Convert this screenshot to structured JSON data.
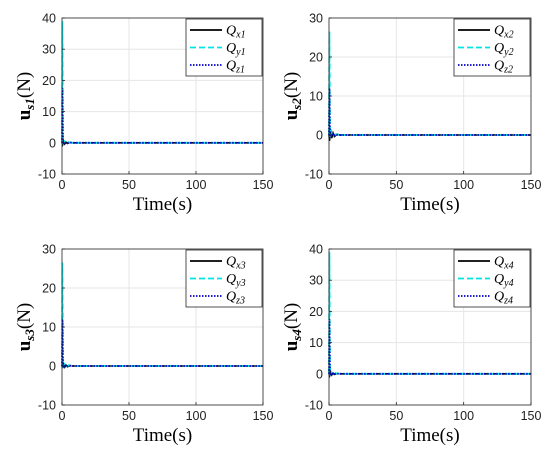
{
  "chart_data": [
    {
      "type": "line",
      "ylabel": {
        "base": "u",
        "sub": "s1",
        "unit": "(N)"
      },
      "xlabel": "Time(s)",
      "xlim": [
        0,
        150
      ],
      "ylim": [
        -10,
        40
      ],
      "xticks": [
        0,
        50,
        100,
        150
      ],
      "yticks": [
        -10,
        0,
        10,
        20,
        30,
        40
      ],
      "grid": true,
      "legend_position": "top-right",
      "series": [
        {
          "name": "Q_x1",
          "label": {
            "q": "Q",
            "sub": "x1"
          },
          "color": "#000000",
          "style": "solid",
          "x": [
            0,
            0.5,
            1,
            2,
            3,
            4,
            6,
            8,
            10,
            20,
            50,
            100,
            150
          ],
          "y": [
            0,
            -0.5,
            0.5,
            -0.4,
            0.2,
            -0.2,
            0.1,
            0,
            0,
            0,
            0,
            0,
            0
          ]
        },
        {
          "name": "Q_y1",
          "label": {
            "q": "Q",
            "sub": "y1"
          },
          "color": "#00e5e5",
          "style": "dashed",
          "x": [
            0,
            0.3,
            0.7,
            1,
            2,
            3,
            5,
            8,
            10,
            20,
            50,
            100,
            150
          ],
          "y": [
            0,
            39,
            2,
            -0.5,
            0.4,
            -0.3,
            0.2,
            0,
            0,
            0,
            0,
            0,
            0
          ]
        },
        {
          "name": "Q_z1",
          "label": {
            "q": "Q",
            "sub": "z1"
          },
          "color": "#0000cc",
          "style": "dotted",
          "x": [
            0,
            0.3,
            0.7,
            1,
            2,
            3,
            5,
            8,
            10,
            20,
            50,
            100,
            150
          ],
          "y": [
            0,
            17.5,
            1,
            -0.5,
            0.3,
            -0.2,
            0.1,
            0,
            0,
            0,
            0,
            0,
            0
          ]
        }
      ]
    },
    {
      "type": "line",
      "ylabel": {
        "base": "u",
        "sub": "s2",
        "unit": "(N)"
      },
      "xlabel": "Time(s)",
      "xlim": [
        0,
        150
      ],
      "ylim": [
        -10,
        30
      ],
      "xticks": [
        0,
        50,
        100,
        150
      ],
      "yticks": [
        -10,
        0,
        10,
        20,
        30
      ],
      "grid": true,
      "legend_position": "top-right",
      "series": [
        {
          "name": "Q_x2",
          "label": {
            "q": "Q",
            "sub": "x2"
          },
          "color": "#000000",
          "style": "solid",
          "x": [
            0,
            0.4,
            1,
            2,
            3,
            4,
            6,
            8,
            10,
            20,
            50,
            100,
            150
          ],
          "y": [
            0,
            -1.5,
            1.5,
            -0.8,
            0.5,
            -0.4,
            0.2,
            0,
            0,
            0,
            0,
            0,
            0
          ]
        },
        {
          "name": "Q_y2",
          "label": {
            "q": "Q",
            "sub": "y2"
          },
          "color": "#00e5e5",
          "style": "dashed",
          "x": [
            0,
            0.3,
            0.7,
            1,
            2,
            3,
            5,
            8,
            10,
            20,
            50,
            100,
            150
          ],
          "y": [
            0,
            26.5,
            2,
            -0.5,
            0.4,
            -0.3,
            0.2,
            0,
            0,
            0,
            0,
            0,
            0
          ]
        },
        {
          "name": "Q_z2",
          "label": {
            "q": "Q",
            "sub": "z2"
          },
          "color": "#0000cc",
          "style": "dotted",
          "x": [
            0,
            0.3,
            0.7,
            1,
            2,
            3,
            5,
            8,
            10,
            20,
            50,
            100,
            150
          ],
          "y": [
            0,
            12,
            1,
            -0.5,
            0.3,
            -0.2,
            0.1,
            0,
            0,
            0,
            0,
            0,
            0
          ]
        }
      ]
    },
    {
      "type": "line",
      "ylabel": {
        "base": "u",
        "sub": "s3",
        "unit": "(N)"
      },
      "xlabel": "Time(s)",
      "xlim": [
        0,
        150
      ],
      "ylim": [
        -10,
        30
      ],
      "xticks": [
        0,
        50,
        100,
        150
      ],
      "yticks": [
        -10,
        0,
        10,
        20,
        30
      ],
      "grid": true,
      "legend_position": "top-right",
      "series": [
        {
          "name": "Q_x3",
          "label": {
            "q": "Q",
            "sub": "x3"
          },
          "color": "#000000",
          "style": "solid",
          "x": [
            0,
            0.5,
            1,
            2,
            3,
            4,
            6,
            8,
            10,
            20,
            50,
            100,
            150
          ],
          "y": [
            0,
            -0.5,
            0.5,
            -0.3,
            0.2,
            -0.2,
            0.1,
            0,
            0,
            0,
            0,
            0,
            0
          ]
        },
        {
          "name": "Q_y3",
          "label": {
            "q": "Q",
            "sub": "y3"
          },
          "color": "#00e5e5",
          "style": "dashed",
          "x": [
            0,
            0.3,
            0.7,
            1,
            2,
            3,
            5,
            8,
            10,
            20,
            50,
            100,
            150
          ],
          "y": [
            0,
            26.5,
            2,
            -0.5,
            0.4,
            -0.3,
            0.2,
            0,
            0,
            0,
            0,
            0,
            0
          ]
        },
        {
          "name": "Q_z3",
          "label": {
            "q": "Q",
            "sub": "z3"
          },
          "color": "#0000cc",
          "style": "dotted",
          "x": [
            0,
            0.3,
            0.7,
            1,
            2,
            3,
            5,
            8,
            10,
            20,
            50,
            100,
            150
          ],
          "y": [
            0,
            12,
            1,
            -0.5,
            0.3,
            -0.2,
            0.1,
            0,
            0,
            0,
            0,
            0,
            0
          ]
        }
      ]
    },
    {
      "type": "line",
      "ylabel": {
        "base": "u",
        "sub": "s4",
        "unit": "(N)"
      },
      "xlabel": "Time(s)",
      "xlim": [
        0,
        150
      ],
      "ylim": [
        -10,
        40
      ],
      "xticks": [
        0,
        50,
        100,
        150
      ],
      "yticks": [
        -10,
        0,
        10,
        20,
        30,
        40
      ],
      "grid": true,
      "legend_position": "top-right",
      "series": [
        {
          "name": "Q_x4",
          "label": {
            "q": "Q",
            "sub": "x4"
          },
          "color": "#000000",
          "style": "solid",
          "x": [
            0,
            0.5,
            1,
            2,
            3,
            4,
            6,
            8,
            10,
            20,
            50,
            100,
            150
          ],
          "y": [
            0,
            -0.5,
            0.5,
            -0.4,
            0.2,
            -0.2,
            0.1,
            0,
            0,
            0,
            0,
            0,
            0
          ]
        },
        {
          "name": "Q_y4",
          "label": {
            "q": "Q",
            "sub": "y4"
          },
          "color": "#00e5e5",
          "style": "dashed",
          "x": [
            0,
            0.3,
            0.7,
            1,
            2,
            3,
            5,
            8,
            10,
            20,
            50,
            100,
            150
          ],
          "y": [
            0,
            39,
            2,
            -0.5,
            0.4,
            -0.3,
            0.2,
            0,
            0,
            0,
            0,
            0,
            0
          ]
        },
        {
          "name": "Q_z4",
          "label": {
            "q": "Q",
            "sub": "z4"
          },
          "color": "#0000cc",
          "style": "dotted",
          "x": [
            0,
            0.3,
            0.7,
            1,
            2,
            3,
            5,
            8,
            10,
            20,
            50,
            100,
            150
          ],
          "y": [
            0,
            17.5,
            1,
            -0.5,
            0.3,
            -0.2,
            0.1,
            0,
            0,
            0,
            0,
            0,
            0
          ]
        }
      ]
    }
  ]
}
